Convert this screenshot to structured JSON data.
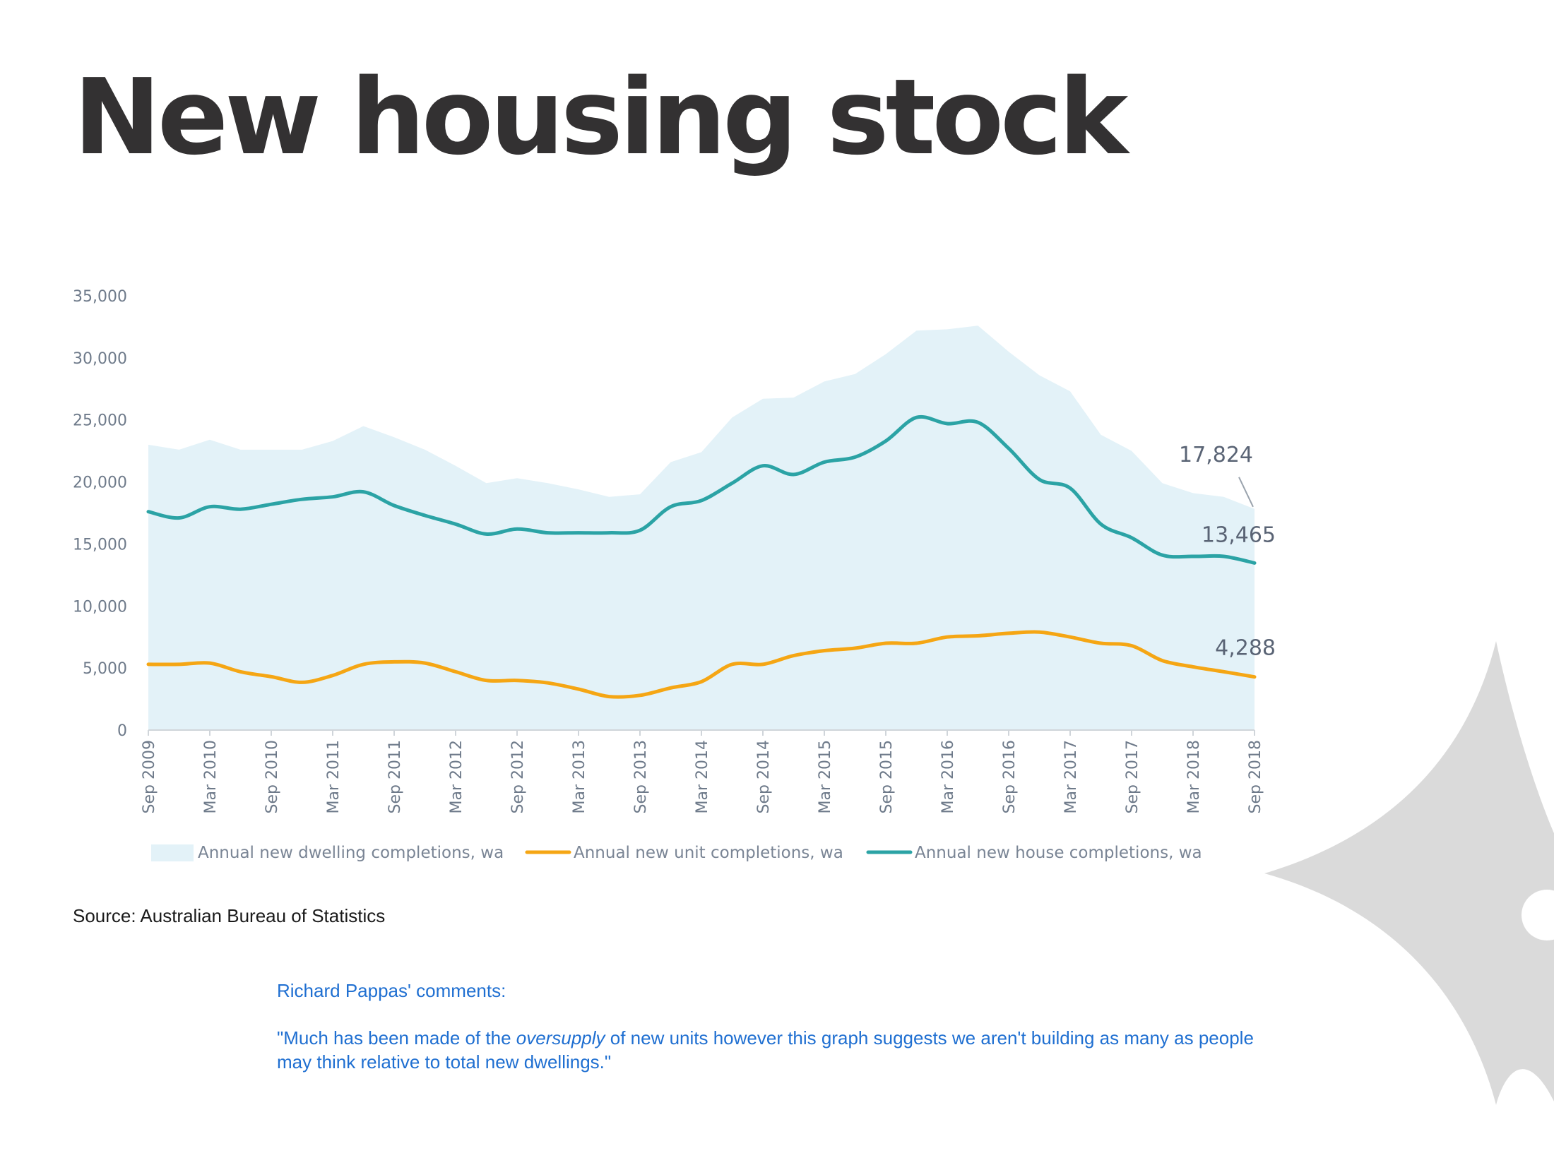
{
  "page": {
    "title": "New housing stock",
    "source": "Source: Australian Bureau of Statistics",
    "comments_heading": "Richard Pappas' comments:",
    "quote_before": "\"Much has been made of the ",
    "quote_emphasis": "oversupply",
    "quote_after": " of new units however this graph suggests we aren't building as many as people may think relative to total new dwellings.\""
  },
  "colors": {
    "dwelling_fill": "#e3f2f8",
    "unit_line": "#f5a614",
    "house_line": "#2ba3a5",
    "axis_text": "#6e7a8a",
    "title": "#333132",
    "comment_text": "#1f6fd1",
    "watermark": "#dadada"
  },
  "chart_data": {
    "type": "line",
    "title": "",
    "xlabel": "",
    "ylabel": "",
    "ylim": [
      0,
      35000
    ],
    "yticks": [
      0,
      5000,
      10000,
      15000,
      20000,
      25000,
      30000,
      35000
    ],
    "ytick_labels": [
      "0",
      "5,000",
      "10,000",
      "15,000",
      "20,000",
      "25,000",
      "30,000",
      "35,000"
    ],
    "x_labels": [
      "Sep 2009",
      "Mar 2010",
      "Sep 2010",
      "Mar 2011",
      "Sep 2011",
      "Mar 2012",
      "Sep 2012",
      "Mar 2013",
      "Sep 2013",
      "Mar 2014",
      "Sep 2014",
      "Mar 2015",
      "Sep 2015",
      "Mar 2016",
      "Sep 2016",
      "Mar 2017",
      "Sep 2017",
      "Mar 2018",
      "Sep 2018"
    ],
    "x": [
      "Sep 2009",
      "Dec 2009",
      "Mar 2010",
      "Jun 2010",
      "Sep 2010",
      "Dec 2010",
      "Mar 2011",
      "Jun 2011",
      "Sep 2011",
      "Dec 2011",
      "Mar 2012",
      "Jun 2012",
      "Sep 2012",
      "Dec 2012",
      "Mar 2013",
      "Jun 2013",
      "Sep 2013",
      "Dec 2013",
      "Mar 2014",
      "Jun 2014",
      "Sep 2014",
      "Dec 2014",
      "Mar 2015",
      "Jun 2015",
      "Sep 2015",
      "Dec 2015",
      "Mar 2016",
      "Jun 2016",
      "Sep 2016",
      "Dec 2016",
      "Mar 2017",
      "Jun 2017",
      "Sep 2017",
      "Dec 2017",
      "Mar 2018",
      "Jun 2018",
      "Sep 2018"
    ],
    "grid": false,
    "legend_position": "bottom",
    "series": [
      {
        "name": "Annual new dwelling completions, wa",
        "kind": "area",
        "values": [
          23000,
          22600,
          23400,
          22600,
          22600,
          22600,
          23300,
          24500,
          23600,
          22600,
          21300,
          19900,
          20300,
          19900,
          19400,
          18800,
          19000,
          21600,
          22400,
          25200,
          26700,
          26800,
          28100,
          28700,
          30300,
          32200,
          32300,
          32600,
          30500,
          28600,
          27300,
          23800,
          22500,
          19900,
          19100,
          18800,
          17824
        ]
      },
      {
        "name": "Annual new unit completions, wa",
        "kind": "line",
        "values": [
          5300,
          5300,
          5400,
          4700,
          4300,
          3850,
          4400,
          5300,
          5500,
          5400,
          4700,
          4000,
          4000,
          3800,
          3300,
          2700,
          2800,
          3400,
          3900,
          5300,
          5300,
          6000,
          6400,
          6600,
          7000,
          7000,
          7500,
          7600,
          7800,
          7900,
          7500,
          7000,
          6800,
          5600,
          5100,
          4700,
          4288
        ]
      },
      {
        "name": "Annual new house completions, wa",
        "kind": "line",
        "values": [
          17600,
          17100,
          18000,
          17800,
          18200,
          18600,
          18800,
          19200,
          18100,
          17300,
          16600,
          15800,
          16200,
          15900,
          15900,
          15900,
          16100,
          18000,
          18500,
          19900,
          21300,
          20600,
          21600,
          22000,
          23300,
          25200,
          24700,
          24800,
          22700,
          20200,
          19500,
          16600,
          15500,
          14100,
          14000,
          14000,
          13465
        ]
      }
    ],
    "annotations": [
      "17,824",
      "13,465",
      "4,288"
    ]
  }
}
